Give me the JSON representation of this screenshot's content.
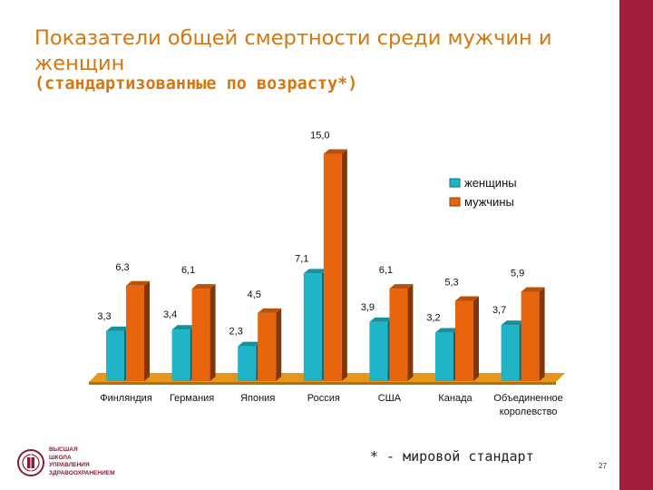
{
  "slide": {
    "title": "Показатели общей смертности среди мужчин и женщин",
    "subtitle": "(стандартизованные по возрасту*)",
    "footnote": "* - мировой стандарт",
    "page_number": "27",
    "logo_lines": [
      "ВЫСШАЯ",
      "ШКОЛА",
      "УПРАВЛЕНИЯ",
      "ЗДРАВООХРАНЕНИЕМ"
    ]
  },
  "chart_data": {
    "type": "bar",
    "title": "",
    "xlabel": "",
    "ylabel": "",
    "ylim": [
      0,
      15
    ],
    "grid": false,
    "legend_position": "top-right",
    "categories": [
      "Финляндия",
      "Германия",
      "Япония",
      "Россия",
      "США",
      "Канада",
      "Объединенное королевство"
    ],
    "series": [
      {
        "name": "женщины",
        "color": "#1fb4c8",
        "values": [
          3.3,
          3.4,
          2.3,
          7.1,
          3.9,
          3.2,
          3.7
        ],
        "labels": [
          "3,3",
          "3,4",
          "2,3",
          "7,1",
          "3,9",
          "3,2",
          "3,7"
        ]
      },
      {
        "name": "мужчины",
        "color": "#e8650e",
        "values": [
          6.3,
          6.1,
          4.5,
          15.0,
          6.1,
          5.3,
          5.9
        ],
        "labels": [
          "6,3",
          "6,1",
          "4,5",
          "15,0",
          "6,1",
          "5,3",
          "5,9"
        ]
      }
    ]
  }
}
